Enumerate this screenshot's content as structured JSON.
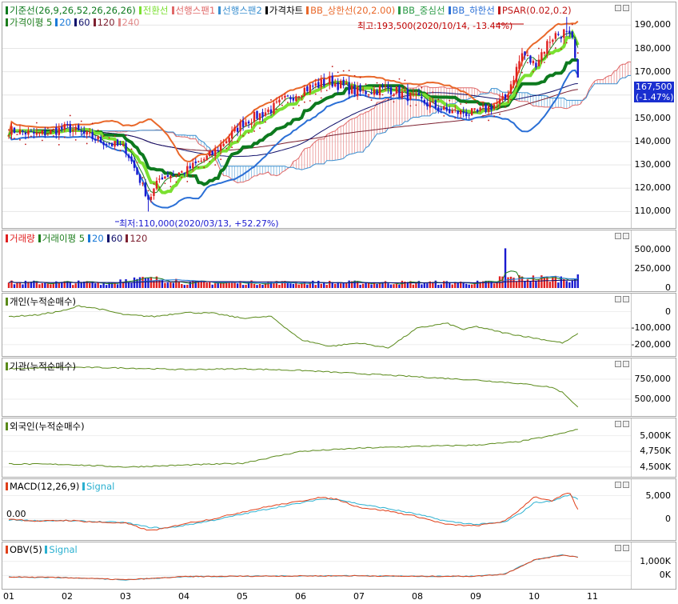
{
  "colors": {
    "up": "#e02020",
    "down": "#1a1ad0",
    "base_line": "#0d7a1e",
    "conversion_line": "#7be031",
    "leading_span1": "#e06868",
    "leading_span2": "#3a8fd0",
    "bb_upper": "#e9682a",
    "bb_middle": "#2a9a46",
    "bb_lower": "#2a6fd6",
    "psar": "#c01818",
    "ma5": "#1d7e1d",
    "ma20": "#1a7ad8",
    "ma60": "#10106b",
    "ma120": "#7d2030",
    "ma240": "#e08a8a",
    "investor_line": "#5a8a1a",
    "macd": "#e0401a",
    "signal": "#2ab0d0"
  },
  "price_pane": {
    "legend": [
      {
        "label": "기준선(26,9,26,52,26,26,26)",
        "color": "#0d7a1e"
      },
      {
        "label": "전환선",
        "color": "#7be031"
      },
      {
        "label": "선행스팬1",
        "color": "#e06868"
      },
      {
        "label": "선행스팬2",
        "color": "#3a8fd0"
      },
      {
        "label": "가격차트",
        "color": "#000000"
      },
      {
        "label": "BB_상한선(20,2.00)",
        "color": "#e9682a"
      },
      {
        "label": "BB_중심선",
        "color": "#2a9a46"
      },
      {
        "label": "BB_하한선",
        "color": "#2a6fd6"
      },
      {
        "label": "PSAR(0.02,0.2)",
        "color": "#c01818"
      }
    ],
    "legend2": [
      {
        "label": "가격이평 5",
        "color": "#1d7e1d"
      },
      {
        "label": "20",
        "color": "#1a7ad8"
      },
      {
        "label": "60",
        "color": "#10106b"
      },
      {
        "label": "120",
        "color": "#7d2030"
      },
      {
        "label": "240",
        "color": "#e08a8a"
      }
    ],
    "high_label": "최고:193,500(2020/10/14, -13.44%)",
    "low_label": "최저:110,000(2020/03/13, +52.27%)",
    "last_price": "167,500",
    "last_change": "(-1.47%)",
    "yticks": [
      "190,000",
      "180,000",
      "170,000",
      "160,000",
      "150,000",
      "140,000",
      "130,000",
      "120,000",
      "110,000"
    ]
  },
  "volume_pane": {
    "legend": [
      {
        "label": "거래량",
        "color": "#e02020"
      },
      {
        "label": "거래이평 5",
        "color": "#1d7e1d"
      },
      {
        "label": "20",
        "color": "#1a7ad8"
      },
      {
        "label": "60",
        "color": "#10106b"
      },
      {
        "label": "120",
        "color": "#7d2030"
      }
    ],
    "yticks": [
      "500,000",
      "250,000",
      "0"
    ]
  },
  "individual_pane": {
    "legend": "개인(누적순매수)",
    "yticks": [
      "0",
      "-100,000",
      "-200,000"
    ]
  },
  "institution_pane": {
    "legend": "기관(누적순매수)",
    "yticks": [
      "750,000",
      "500,000"
    ]
  },
  "foreign_pane": {
    "legend": "외국인(누적순매수)",
    "yticks": [
      "5,000K",
      "4,750K",
      "4,500K"
    ]
  },
  "macd_pane": {
    "legend1": "MACD(12,26,9)",
    "legend2": "Signal",
    "zero_label": "0.00",
    "yticks": [
      "5,000",
      "0"
    ]
  },
  "obv_pane": {
    "legend1": "OBV(5)",
    "legend2": "Signal",
    "yticks": [
      "1,000K",
      "0K"
    ]
  },
  "x_axis": {
    "labels": [
      "01",
      "02",
      "03",
      "04",
      "05",
      "06",
      "07",
      "08",
      "09",
      "10",
      "11"
    ]
  },
  "chart_data": {
    "type": "candlestick",
    "x_months": [
      "01",
      "02",
      "03",
      "04",
      "05",
      "06",
      "07",
      "08",
      "09",
      "10",
      "11"
    ],
    "price_anchors": [
      {
        "month": 0.0,
        "close": 145000
      },
      {
        "month": 0.5,
        "close": 143000
      },
      {
        "month": 1.0,
        "close": 146000
      },
      {
        "month": 1.5,
        "close": 141000
      },
      {
        "month": 2.0,
        "close": 137000
      },
      {
        "month": 2.4,
        "close": 115000
      },
      {
        "month": 2.6,
        "close": 125000
      },
      {
        "month": 3.0,
        "close": 127000
      },
      {
        "month": 3.5,
        "close": 135000
      },
      {
        "month": 4.0,
        "close": 148000
      },
      {
        "month": 4.5,
        "close": 154000
      },
      {
        "month": 5.0,
        "close": 162000
      },
      {
        "month": 5.5,
        "close": 166000
      },
      {
        "month": 6.0,
        "close": 161000
      },
      {
        "month": 6.5,
        "close": 163000
      },
      {
        "month": 7.0,
        "close": 158000
      },
      {
        "month": 7.5,
        "close": 153000
      },
      {
        "month": 8.0,
        "close": 152000
      },
      {
        "month": 8.5,
        "close": 158000
      },
      {
        "month": 8.8,
        "close": 178000
      },
      {
        "month": 9.0,
        "close": 173000
      },
      {
        "month": 9.3,
        "close": 185000
      },
      {
        "month": 9.5,
        "close": 187000
      },
      {
        "month": 9.65,
        "close": 183000
      },
      {
        "month": 9.75,
        "close": 167500
      }
    ],
    "high": {
      "value": 193500,
      "date": "2020/10/14",
      "change": "-13.44%"
    },
    "low": {
      "value": 110000,
      "date": "2020/03/13",
      "change": "+52.27%"
    },
    "last": {
      "value": 167500,
      "change": "-1.47%"
    },
    "price_ylim": [
      105000,
      197000
    ],
    "volume_ylim": [
      0,
      650000
    ],
    "volume_spike": {
      "month": 8.5,
      "value": 520000
    },
    "individual_series": [
      [
        0,
        -30000
      ],
      [
        0.5,
        -20000
      ],
      [
        1.0,
        10000
      ],
      [
        1.2,
        35000
      ],
      [
        1.5,
        20000
      ],
      [
        2.0,
        -20000
      ],
      [
        2.5,
        -30000
      ],
      [
        3.0,
        -5000
      ],
      [
        3.5,
        -10000
      ],
      [
        4.0,
        -40000
      ],
      [
        4.5,
        -30000
      ],
      [
        5.0,
        -170000
      ],
      [
        5.5,
        -210000
      ],
      [
        6.0,
        -190000
      ],
      [
        6.5,
        -220000
      ],
      [
        7.0,
        -100000
      ],
      [
        7.5,
        -70000
      ],
      [
        7.8,
        -110000
      ],
      [
        8.0,
        -90000
      ],
      [
        8.5,
        -130000
      ],
      [
        9.0,
        -160000
      ],
      [
        9.5,
        -190000
      ],
      [
        9.75,
        -135000
      ]
    ],
    "individual_ylim": [
      -240000,
      80000
    ],
    "institution_series": [
      [
        0,
        880000
      ],
      [
        1.0,
        900000
      ],
      [
        2.0,
        890000
      ],
      [
        3.0,
        870000
      ],
      [
        4.0,
        880000
      ],
      [
        5.0,
        860000
      ],
      [
        6.0,
        820000
      ],
      [
        7.0,
        780000
      ],
      [
        8.0,
        740000
      ],
      [
        8.7,
        700000
      ],
      [
        9.3,
        650000
      ],
      [
        9.5,
        580000
      ],
      [
        9.75,
        400000
      ]
    ],
    "institution_ylim": [
      350000,
      950000
    ],
    "foreign_series": [
      [
        0,
        4550000
      ],
      [
        1.0,
        4540000
      ],
      [
        2.0,
        4500000
      ],
      [
        3.0,
        4530000
      ],
      [
        4.0,
        4560000
      ],
      [
        5.0,
        4750000
      ],
      [
        6.0,
        4800000
      ],
      [
        7.0,
        4830000
      ],
      [
        8.0,
        4850000
      ],
      [
        8.7,
        4900000
      ],
      [
        9.3,
        5000000
      ],
      [
        9.75,
        5100000
      ]
    ],
    "foreign_ylim": [
      4420000,
      5200000
    ],
    "macd_series": [
      [
        0,
        0
      ],
      [
        0.5,
        -500
      ],
      [
        1.0,
        -300
      ],
      [
        1.5,
        -700
      ],
      [
        2.0,
        -900
      ],
      [
        2.4,
        -2500
      ],
      [
        2.7,
        -2000
      ],
      [
        3.0,
        -1000
      ],
      [
        3.5,
        0
      ],
      [
        4.0,
        1500
      ],
      [
        4.5,
        2800
      ],
      [
        5.0,
        3800
      ],
      [
        5.3,
        4600
      ],
      [
        5.6,
        4300
      ],
      [
        6.0,
        2500
      ],
      [
        6.5,
        1700
      ],
      [
        7.0,
        500
      ],
      [
        7.5,
        -1200
      ],
      [
        8.0,
        -1500
      ],
      [
        8.5,
        -500
      ],
      [
        8.8,
        2500
      ],
      [
        9.0,
        4800
      ],
      [
        9.3,
        3800
      ],
      [
        9.6,
        5800
      ],
      [
        9.75,
        2000
      ]
    ],
    "signal_series": [
      [
        0,
        -200
      ],
      [
        0.5,
        -400
      ],
      [
        1.0,
        -400
      ],
      [
        1.5,
        -600
      ],
      [
        2.0,
        -800
      ],
      [
        2.4,
        -1800
      ],
      [
        2.7,
        -2000
      ],
      [
        3.0,
        -1400
      ],
      [
        3.5,
        -300
      ],
      [
        4.0,
        1000
      ],
      [
        4.5,
        2300
      ],
      [
        5.0,
        3400
      ],
      [
        5.3,
        4200
      ],
      [
        5.6,
        4300
      ],
      [
        6.0,
        3200
      ],
      [
        6.5,
        2200
      ],
      [
        7.0,
        1000
      ],
      [
        7.5,
        -500
      ],
      [
        8.0,
        -1200
      ],
      [
        8.5,
        -700
      ],
      [
        8.8,
        1500
      ],
      [
        9.0,
        3500
      ],
      [
        9.3,
        3800
      ],
      [
        9.6,
        5200
      ],
      [
        9.75,
        4200
      ]
    ],
    "macd_ylim": [
      -3500,
      7500
    ],
    "obv_series": [
      [
        0,
        -100000
      ],
      [
        1.0,
        -150000
      ],
      [
        2.0,
        -300000
      ],
      [
        2.5,
        -200000
      ],
      [
        3.0,
        -80000
      ],
      [
        4.0,
        -50000
      ],
      [
        5.0,
        -30000
      ],
      [
        6.0,
        -20000
      ],
      [
        7.0,
        -60000
      ],
      [
        8.0,
        -50000
      ],
      [
        8.5,
        100000
      ],
      [
        8.8,
        700000
      ],
      [
        9.0,
        1100000
      ],
      [
        9.5,
        1450000
      ],
      [
        9.75,
        1300000
      ]
    ],
    "obv_ylim": [
      -600000,
      2000000
    ]
  }
}
